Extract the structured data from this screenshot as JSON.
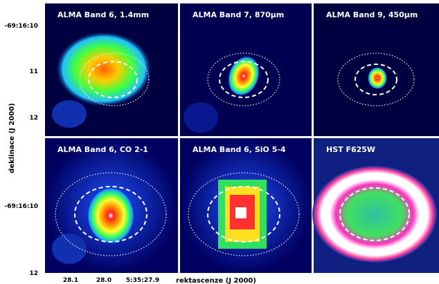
{
  "panels": [
    {
      "title": "ALMA Band 6, 1.4mm"
    },
    {
      "title": "ALMA Band 7, 870μm"
    },
    {
      "title": "ALMA Band 9, 450μm"
    },
    {
      "title": "ALMA Band 6, CO 2-1"
    },
    {
      "title": "ALMA Band 6, SiO 5-4"
    },
    {
      "title": "HST F625W"
    }
  ],
  "y_axis": {
    "label": "deklinace (J 2000)",
    "ticks_top": [
      "-69:16:10",
      "11",
      "12"
    ],
    "ticks_bottom": [
      "-69:16:10",
      "12"
    ]
  },
  "x_axis": {
    "label": "rektascenze (J 2000)",
    "ticks": [
      "28.1",
      "28.0",
      "5:35:27.9"
    ]
  }
}
